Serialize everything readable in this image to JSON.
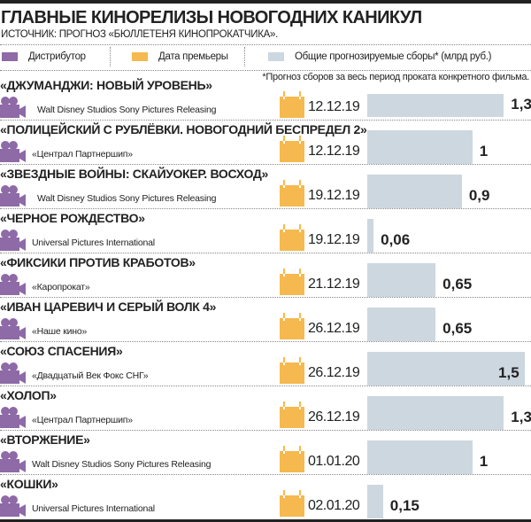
{
  "title": "ГЛАВНЫЕ КИНОРЕЛИЗЫ НОВОГОДНИХ КАНИКУЛ",
  "source": "ИСТОЧНИК: ПРОГНОЗ «БЮЛЛЕТЕНЯ КИНОПРОКАТЧИКА».",
  "legend": {
    "distributor": "Дистрибутор",
    "premiere": "Дата премьеры",
    "gross": "Общие прогнозируемые сборы* (млрд руб.)"
  },
  "note": "*Прогноз сборов за весь период проката конкретного фильма.",
  "colors": {
    "distributor": "#8e6aa6",
    "premiere": "#f5b94f",
    "gross": "#cdd7df"
  },
  "chart_data": {
    "type": "bar",
    "ylabel": "Общие прогнозируемые сборы* (млрд руб.)",
    "categories": [
      "«ДЖУМАНДЖИ: НОВЫЙ УРОВЕНЬ»",
      "«ПОЛИЦЕЙСКИЙ С РУБЛЁВКИ. НОВОГОДНИЙ БЕСПРЕДЕЛ 2»",
      "«ЗВЕЗДНЫЕ ВОЙНЫ: СКАЙУОКЕР. ВОСХОД»",
      "«ЧЕРНОЕ РОЖДЕСТВО»",
      "«ФИКСИКИ ПРОТИВ КРАБОТОВ»",
      "«ИВАН ЦАРЕВИЧ И СЕРЫЙ ВОЛК 4»",
      "«СОЮЗ СПАСЕНИЯ»",
      "«ХОЛОП»",
      "«ВТОРЖЕНИЕ»",
      "«КОШКИ»"
    ],
    "values": [
      1.3,
      1,
      0.9,
      0.06,
      0.65,
      0.65,
      1.5,
      1.3,
      1,
      0.15
    ],
    "value_labels": [
      "1,3",
      "1",
      "0,9",
      "0,06",
      "0,65",
      "0,65",
      "1,5",
      "1,3",
      "1",
      "0,15"
    ],
    "distributors": [
      "Walt Disney Studios Sony Pictures Releasing",
      "«Централ Партнершип»",
      "Walt Disney Studios Sony Pictures Releasing",
      "Universal Pictures International",
      "«Каропрокат»",
      "«Наше кино»",
      "«Двадцатый Век Фокс СНГ»",
      "«Централ Партнершип»",
      "Walt Disney Studios Sony Pictures Releasing",
      "Universal Pictures International"
    ],
    "dates": [
      "12.12.19",
      "12.12.19",
      "19.12.19",
      "19.12.19",
      "21.12.19",
      "26.12.19",
      "26.12.19",
      "26.12.19",
      "01.01.20",
      "02.01.20"
    ]
  }
}
